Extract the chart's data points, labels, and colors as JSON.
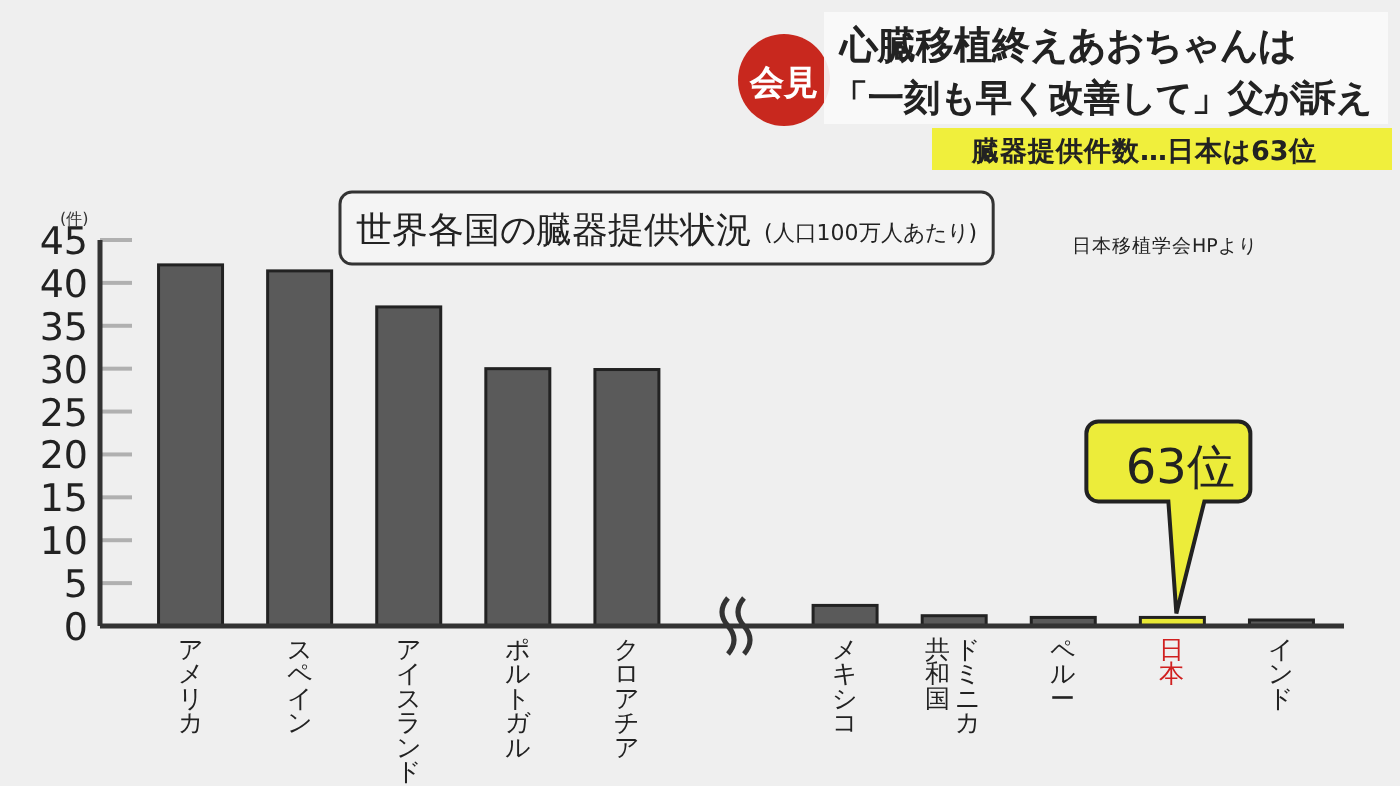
{
  "chart_data": {
    "type": "bar",
    "title": "世界各国の臓器提供状況",
    "subtitle": "(人口100万人あたり)",
    "ylabel": "(件)",
    "categories": [
      "アメリカ",
      "スペイン",
      "アイスランド",
      "ポルトガル",
      "クロアチア",
      null,
      "メキシコ",
      "ドミニカ共和国",
      "ペルー",
      "日本",
      "インド"
    ],
    "values": [
      42.1,
      41.4,
      37.2,
      30.0,
      29.9,
      null,
      2.4,
      1.2,
      1.0,
      1.0,
      0.7
    ],
    "colors": [
      "#5a5a5a",
      "#5a5a5a",
      "#5a5a5a",
      "#5a5a5a",
      "#5a5a5a",
      null,
      "#5a5a5a",
      "#5a5a5a",
      "#5a5a5a",
      "#e8e834",
      "#5a5a5a"
    ],
    "ylim": [
      0,
      45
    ],
    "yticks": [
      0,
      5,
      10,
      15,
      20,
      25,
      30,
      35,
      40,
      45
    ],
    "grid": false,
    "annotations": [
      {
        "text": "63位",
        "x": "日本",
        "y": 1.0
      },
      "日本移植学会HPより",
      "会見",
      "心臓移植終えあおちゃんは",
      "「一刻も早く改善して」父が訴え",
      "臓器提供件数…日本は63位"
    ]
  }
}
